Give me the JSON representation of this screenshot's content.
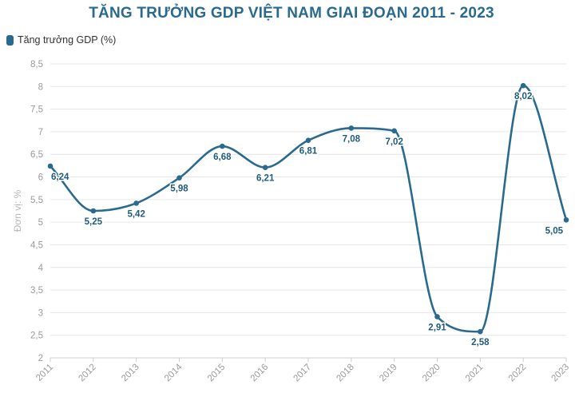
{
  "title": "TĂNG TRƯỞNG GDP VIỆT NAM GIAI ĐOẠN 2011 - 2023",
  "legend": {
    "label": "Tăng trưởng GDP (%)",
    "color": "#2a6a8f"
  },
  "chart_data": {
    "type": "line",
    "title": "TĂNG TRƯỞNG GDP VIỆT NAM GIAI ĐOẠN 2011 - 2023",
    "xlabel": "",
    "ylabel": "Đơn vị: %",
    "categories": [
      "2011",
      "2012",
      "2013",
      "2014",
      "2015",
      "2016",
      "2017",
      "2018",
      "2019",
      "2020",
      "2021",
      "2022",
      "2023"
    ],
    "series": [
      {
        "name": "Tăng trưởng GDP (%)",
        "values": [
          6.24,
          5.25,
          5.42,
          5.98,
          6.68,
          6.21,
          6.81,
          7.08,
          7.02,
          2.91,
          2.58,
          8.02,
          5.05
        ],
        "labels": [
          "6,24",
          "5,25",
          "5,42",
          "5,98",
          "6,68",
          "6,21",
          "6,81",
          "7,08",
          "7,02",
          "2,91",
          "2,58",
          "8,02",
          "5,05"
        ],
        "color": "#2a6a8f"
      }
    ],
    "ylim": [
      2,
      8.5
    ],
    "yticks": [
      "2",
      "2,5",
      "3",
      "3,5",
      "4",
      "4,5",
      "5",
      "5,5",
      "6",
      "6,5",
      "7",
      "7,5",
      "8",
      "8,5"
    ],
    "grid": true,
    "legend_position": "top-left",
    "smooth": true
  }
}
